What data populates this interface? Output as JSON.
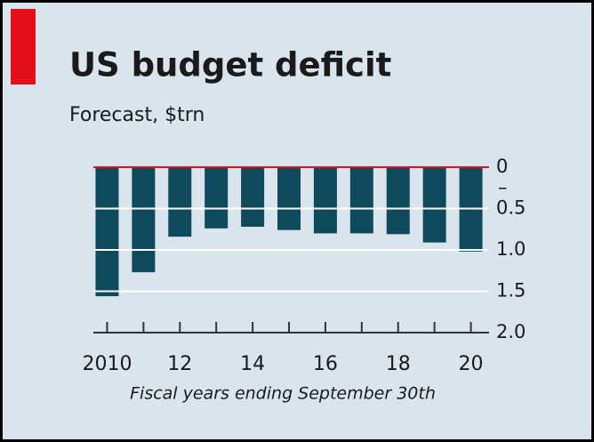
{
  "chart_data": {
    "type": "bar",
    "title": "US budget deficit",
    "subtitle": "Forecast, $trn",
    "x_label": "Fiscal years ending September 30th",
    "axis_sign": "–",
    "categories": [
      "2010",
      null,
      "12",
      null,
      "14",
      null,
      "16",
      null,
      "18",
      null,
      "20"
    ],
    "values": [
      1.56,
      1.27,
      0.84,
      0.74,
      0.72,
      0.76,
      0.8,
      0.8,
      0.81,
      0.91,
      1.02
    ],
    "color": "#0f4a5c",
    "ylim": [
      0,
      2.0
    ],
    "y_inverted": true,
    "yticks": [
      0,
      0.5,
      {
        "value": 1.0,
        "label": "1.0"
      },
      1.5,
      {
        "value": 2.0,
        "label": "2.0"
      }
    ],
    "grid": true,
    "grid_color": "#ffffff",
    "zero_line_color": "#e3101c",
    "background": "#d9e4ec"
  }
}
